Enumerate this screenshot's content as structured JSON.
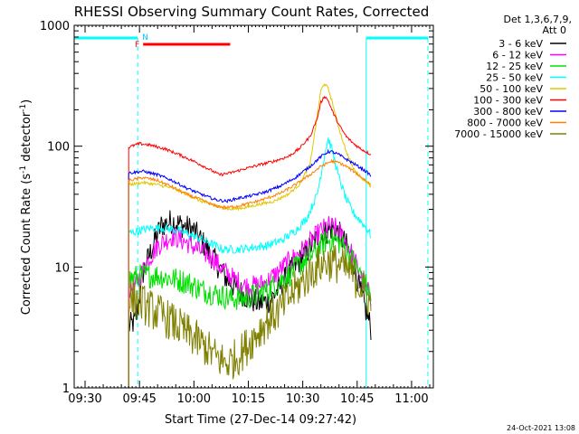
{
  "chart_data": {
    "type": "line",
    "title": "RHESSI Observing Summary Count Rates, Corrected",
    "xlabel": "Start Time (27-Dec-14 09:27:42)",
    "ylabel_main": "Corrected Count Rate (s",
    "ylabel_sup1": "-1",
    "ylabel_mid": " detector",
    "ylabel_sup2": "-1",
    "ylabel_end": ")",
    "yscale": "log",
    "ylim": [
      1,
      1000
    ],
    "xlim_minutes": [
      -3,
      96
    ],
    "x_ticks": [
      "09:30",
      "09:45",
      "10:00",
      "10:15",
      "10:30",
      "10:45",
      "11:00"
    ],
    "x_tick_minutes": [
      0,
      15,
      30,
      45,
      60,
      75,
      90
    ],
    "y_ticks": [
      "1",
      "10",
      "100",
      "1000"
    ],
    "y_tick_values": [
      1,
      10,
      100,
      1000
    ],
    "legend_header": [
      "Det 1,3,6,7,9,",
      "Att 0"
    ],
    "legend_position": "right",
    "timestamp": "24-Oct-2021 13:08",
    "annotations": [
      {
        "label": "F",
        "color": "#ff0000"
      },
      {
        "label": "N",
        "color": "#00c8ff"
      }
    ],
    "data_window_minutes": [
      12,
      79
    ],
    "night_intervals_minutes": [
      [
        -3,
        14.5
      ],
      [
        77.5,
        94.5
      ]
    ],
    "flare_interval_minutes": [
      16,
      40
    ],
    "series": [
      {
        "name": "3 - 6 keV",
        "color": "#000000",
        "x": [
          12,
          14,
          16,
          19,
          21,
          24,
          27,
          30,
          33,
          36,
          39,
          42,
          45,
          48,
          51,
          54,
          57,
          60,
          63,
          66,
          68,
          70,
          72,
          74,
          76,
          78,
          79
        ],
        "y": [
          3.2,
          3.6,
          9,
          16,
          22,
          24,
          22,
          20,
          15,
          11,
          8,
          6.5,
          5.5,
          5,
          5.3,
          7,
          9.5,
          12,
          16,
          19,
          21,
          19,
          15,
          11,
          6,
          3.8,
          3
        ]
      },
      {
        "name": "6 - 12 keV",
        "color": "#ff00ff",
        "x": [
          12,
          14,
          17,
          20,
          24,
          28,
          31,
          35,
          38,
          41,
          44,
          47,
          50,
          53,
          56,
          59,
          62,
          65,
          67,
          69,
          71,
          73,
          75,
          77,
          79
        ],
        "y": [
          6.5,
          7,
          11,
          15,
          18,
          16,
          14,
          12,
          9.5,
          8,
          7,
          7,
          7.5,
          9,
          11,
          13,
          16,
          20,
          22,
          21,
          18,
          14,
          10,
          7,
          5.5
        ]
      },
      {
        "name": "12 - 25 keV",
        "color": "#00e000",
        "x": [
          12,
          16,
          20,
          24,
          28,
          32,
          36,
          40,
          44,
          48,
          52,
          56,
          60,
          63,
          66,
          68,
          70,
          72,
          74,
          76,
          78,
          79
        ],
        "y": [
          8,
          8.5,
          8.5,
          8,
          7.5,
          6.5,
          6,
          5.5,
          5.5,
          6,
          7,
          8.5,
          11,
          13,
          16,
          17,
          16,
          14,
          11,
          8.5,
          6.5,
          5.5
        ]
      },
      {
        "name": "25 - 50 keV",
        "color": "#00ffff",
        "x": [
          12,
          15,
          18,
          22,
          26,
          30,
          34,
          38,
          42,
          46,
          50,
          54,
          58,
          61,
          64,
          66,
          67,
          68,
          70,
          72,
          74,
          76,
          78,
          79
        ],
        "y": [
          19,
          20,
          21,
          21,
          20,
          18,
          16,
          14,
          14,
          14.5,
          15,
          16.5,
          20,
          25,
          40,
          85,
          115,
          95,
          55,
          36,
          28,
          24,
          20,
          18
        ]
      },
      {
        "name": "50 - 100 keV",
        "color": "#e0c800",
        "x": [
          12,
          16,
          20,
          24,
          28,
          32,
          36,
          40,
          44,
          48,
          52,
          56,
          59,
          62,
          64,
          65,
          66,
          67,
          68,
          70,
          72,
          74,
          76,
          78,
          79
        ],
        "y": [
          48,
          50,
          48,
          45,
          40,
          35,
          32,
          30,
          31,
          33,
          35,
          40,
          48,
          70,
          180,
          290,
          330,
          300,
          240,
          140,
          90,
          65,
          55,
          50,
          45
        ]
      },
      {
        "name": "100 - 300 keV",
        "color": "#ff0000",
        "x": [
          12,
          15,
          18,
          22,
          26,
          30,
          34,
          37,
          40,
          44,
          48,
          52,
          56,
          59,
          62,
          64,
          65,
          66,
          67,
          68,
          70,
          72,
          74,
          76,
          78,
          79
        ],
        "y": [
          98,
          105,
          102,
          95,
          85,
          75,
          65,
          58,
          60,
          65,
          70,
          75,
          82,
          95,
          120,
          170,
          230,
          260,
          240,
          200,
          150,
          120,
          105,
          95,
          88,
          85
        ]
      },
      {
        "name": "300 - 800 keV",
        "color": "#0000ff",
        "x": [
          12,
          16,
          20,
          24,
          28,
          32,
          36,
          39,
          42,
          46,
          50,
          54,
          58,
          62,
          65,
          67,
          68,
          70,
          72,
          74,
          76,
          78,
          79
        ],
        "y": [
          60,
          62,
          58,
          52,
          45,
          40,
          36,
          35,
          37,
          39,
          42,
          47,
          55,
          68,
          82,
          90,
          90,
          85,
          78,
          72,
          66,
          60,
          56
        ]
      },
      {
        "name": "800 - 7000 keV",
        "color": "#ff8000",
        "x": [
          12,
          16,
          20,
          24,
          28,
          32,
          36,
          39,
          42,
          46,
          50,
          54,
          58,
          62,
          65,
          67,
          68,
          70,
          72,
          74,
          76,
          78,
          79
        ],
        "y": [
          52,
          55,
          52,
          46,
          40,
          36,
          32,
          31,
          32,
          34,
          37,
          41,
          48,
          58,
          68,
          73,
          75,
          73,
          68,
          62,
          56,
          50,
          48
        ]
      },
      {
        "name": "7000 - 15000 keV",
        "color": "#808000",
        "x": [
          12,
          15,
          18,
          21,
          24,
          27,
          30,
          33,
          36,
          39,
          42,
          45,
          48,
          51,
          54,
          57,
          60,
          63,
          66,
          68,
          70,
          72,
          74,
          76,
          78,
          79
        ],
        "y": [
          5.5,
          5.2,
          4.5,
          4,
          3.5,
          3,
          2.6,
          2.2,
          1.8,
          1.6,
          1.8,
          2.3,
          3,
          3.8,
          4.5,
          6,
          7.5,
          9.5,
          11,
          11,
          10.5,
          9.5,
          8.5,
          7,
          5.5,
          4.5
        ]
      }
    ]
  }
}
